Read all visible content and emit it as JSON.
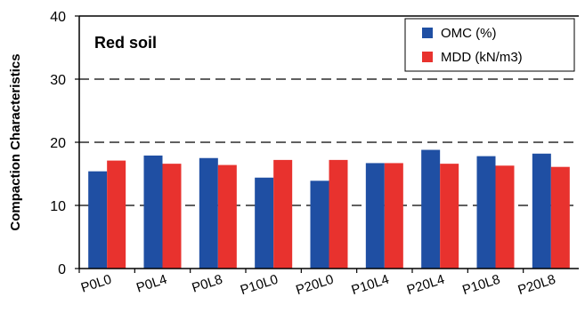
{
  "chart_data": {
    "type": "bar",
    "title": "Red soil",
    "xlabel": "",
    "ylabel": "Compaction Characteristics",
    "ylim": [
      0,
      40
    ],
    "yticks": [
      0,
      10,
      20,
      30,
      40
    ],
    "gridlines": [
      10,
      20,
      30
    ],
    "grid": "dashed horizontal",
    "legend_position": "top-right",
    "categories": [
      "P0L0",
      "P0L4",
      "P0L8",
      "P10L0",
      "P20L0",
      "P10L4",
      "P20L4",
      "P10L8",
      "P20L8"
    ],
    "series": [
      {
        "name": "OMC (%)",
        "color": "#1f4fa3",
        "values": [
          15.4,
          17.9,
          17.5,
          14.4,
          13.9,
          16.7,
          18.8,
          17.8,
          18.2
        ]
      },
      {
        "name": "MDD (kN/m3)",
        "color": "#e8322e",
        "values": [
          17.1,
          16.6,
          16.4,
          17.2,
          17.2,
          16.7,
          16.6,
          16.3,
          16.1
        ]
      }
    ]
  }
}
